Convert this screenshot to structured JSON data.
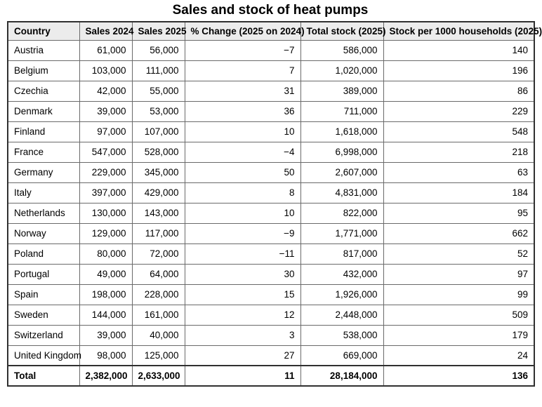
{
  "title": "Sales and stock of heat pumps",
  "colors": {
    "background": "#ffffff",
    "header_bg": "#ececec",
    "border_outer": "#303030",
    "border_inner": "#6a6a6a",
    "text": "#000000"
  },
  "chart_data": {
    "type": "table",
    "title": "Sales and stock of heat pumps",
    "columns": [
      "Country",
      "Sales 2024",
      "Sales 2025",
      "% Change (2025 on 2024)",
      "Total stock (2025)",
      "Stock per 1000 households (2025)"
    ],
    "rows": [
      [
        "Austria",
        "61,000",
        "56,000",
        "−7",
        "586,000",
        "140"
      ],
      [
        "Belgium",
        "103,000",
        "111,000",
        "7",
        "1,020,000",
        "196"
      ],
      [
        "Czechia",
        "42,000",
        "55,000",
        "31",
        "389,000",
        "86"
      ],
      [
        "Denmark",
        "39,000",
        "53,000",
        "36",
        "711,000",
        "229"
      ],
      [
        "Finland",
        "97,000",
        "107,000",
        "10",
        "1,618,000",
        "548"
      ],
      [
        "France",
        "547,000",
        "528,000",
        "−4",
        "6,998,000",
        "218"
      ],
      [
        "Germany",
        "229,000",
        "345,000",
        "50",
        "2,607,000",
        "63"
      ],
      [
        "Italy",
        "397,000",
        "429,000",
        "8",
        "4,831,000",
        "184"
      ],
      [
        "Netherlands",
        "130,000",
        "143,000",
        "10",
        "822,000",
        "95"
      ],
      [
        "Norway",
        "129,000",
        "117,000",
        "−9",
        "1,771,000",
        "662"
      ],
      [
        "Poland",
        "80,000",
        "72,000",
        "−11",
        "817,000",
        "52"
      ],
      [
        "Portugal",
        "49,000",
        "64,000",
        "30",
        "432,000",
        "97"
      ],
      [
        "Spain",
        "198,000",
        "228,000",
        "15",
        "1,926,000",
        "99"
      ],
      [
        "Sweden",
        "144,000",
        "161,000",
        "12",
        "2,448,000",
        "509"
      ],
      [
        "Switzerland",
        "39,000",
        "40,000",
        "3",
        "538,000",
        "179"
      ],
      [
        "United Kingdom",
        "98,000",
        "125,000",
        "27",
        "669,000",
        "24"
      ]
    ],
    "total_row": [
      "Total",
      "2,382,000",
      "2,633,000",
      "11",
      "28,184,000",
      "136"
    ]
  }
}
